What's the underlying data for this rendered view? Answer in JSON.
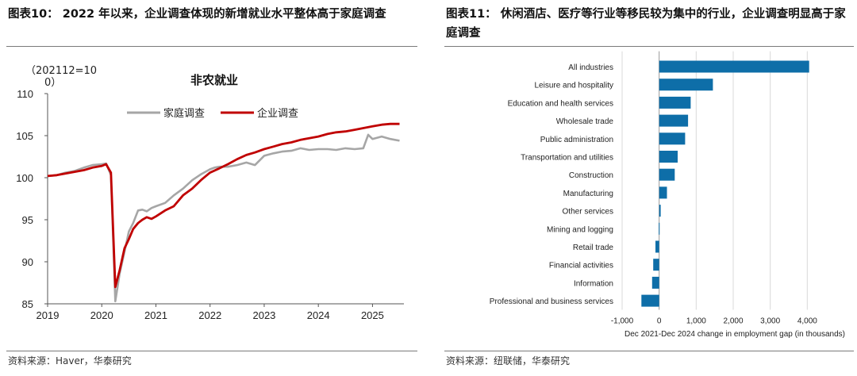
{
  "left": {
    "figure_title": "图表10： 2022 年以来，企业调查体现的新增就业水平整体高于家庭调查",
    "source": "资料来源：Haver，华泰研究",
    "chart_data": {
      "type": "line",
      "title": "非农就业",
      "unit_label_line1": "（202112=10",
      "unit_label_line2": "0）",
      "ylim": [
        85,
        110
      ],
      "yticks": [
        85,
        90,
        95,
        100,
        105,
        110
      ],
      "xlim": [
        2019.0,
        2025.58
      ],
      "xticks": [
        "2019",
        "2020",
        "2021",
        "2022",
        "2023",
        "2024",
        "2025"
      ],
      "series": [
        {
          "name": "家庭调查",
          "color": "#a6a6a6",
          "points": [
            [
              2019.0,
              100.2
            ],
            [
              2019.17,
              100.3
            ],
            [
              2019.33,
              100.6
            ],
            [
              2019.5,
              100.8
            ],
            [
              2019.67,
              101.2
            ],
            [
              2019.83,
              101.5
            ],
            [
              2020.0,
              101.6
            ],
            [
              2020.08,
              101.7
            ],
            [
              2020.17,
              100.3
            ],
            [
              2020.25,
              85.3
            ],
            [
              2020.33,
              88.6
            ],
            [
              2020.42,
              91.2
            ],
            [
              2020.5,
              93.6
            ],
            [
              2020.58,
              94.6
            ],
            [
              2020.67,
              96.1
            ],
            [
              2020.75,
              96.2
            ],
            [
              2020.83,
              96.0
            ],
            [
              2020.92,
              96.4
            ],
            [
              2021.0,
              96.6
            ],
            [
              2021.17,
              97.0
            ],
            [
              2021.33,
              97.9
            ],
            [
              2021.5,
              98.7
            ],
            [
              2021.67,
              99.7
            ],
            [
              2021.83,
              100.4
            ],
            [
              2022.0,
              101.0
            ],
            [
              2022.08,
              101.2
            ],
            [
              2022.17,
              101.3
            ],
            [
              2022.33,
              101.3
            ],
            [
              2022.5,
              101.5
            ],
            [
              2022.67,
              101.8
            ],
            [
              2022.83,
              101.5
            ],
            [
              2023.0,
              102.6
            ],
            [
              2023.17,
              102.9
            ],
            [
              2023.33,
              103.1
            ],
            [
              2023.5,
              103.2
            ],
            [
              2023.67,
              103.5
            ],
            [
              2023.83,
              103.3
            ],
            [
              2024.0,
              103.4
            ],
            [
              2024.17,
              103.4
            ],
            [
              2024.33,
              103.3
            ],
            [
              2024.5,
              103.5
            ],
            [
              2024.67,
              103.4
            ],
            [
              2024.83,
              103.5
            ],
            [
              2024.92,
              105.1
            ],
            [
              2025.0,
              104.6
            ],
            [
              2025.17,
              104.9
            ],
            [
              2025.33,
              104.6
            ],
            [
              2025.5,
              104.4
            ]
          ]
        },
        {
          "name": "企业调查",
          "color": "#c00000",
          "points": [
            [
              2019.0,
              100.2
            ],
            [
              2019.17,
              100.3
            ],
            [
              2019.33,
              100.5
            ],
            [
              2019.5,
              100.7
            ],
            [
              2019.67,
              100.9
            ],
            [
              2019.83,
              101.2
            ],
            [
              2020.0,
              101.4
            ],
            [
              2020.08,
              101.6
            ],
            [
              2020.17,
              100.6
            ],
            [
              2020.25,
              87.0
            ],
            [
              2020.33,
              89.0
            ],
            [
              2020.42,
              91.6
            ],
            [
              2020.5,
              92.7
            ],
            [
              2020.58,
              93.9
            ],
            [
              2020.67,
              94.6
            ],
            [
              2020.75,
              95.0
            ],
            [
              2020.83,
              95.3
            ],
            [
              2020.92,
              95.1
            ],
            [
              2021.0,
              95.4
            ],
            [
              2021.17,
              96.1
            ],
            [
              2021.33,
              96.6
            ],
            [
              2021.5,
              97.9
            ],
            [
              2021.67,
              98.7
            ],
            [
              2021.83,
              99.7
            ],
            [
              2022.0,
              100.6
            ],
            [
              2022.17,
              101.1
            ],
            [
              2022.33,
              101.6
            ],
            [
              2022.5,
              102.2
            ],
            [
              2022.67,
              102.7
            ],
            [
              2022.83,
              103.0
            ],
            [
              2023.0,
              103.4
            ],
            [
              2023.17,
              103.7
            ],
            [
              2023.33,
              104.0
            ],
            [
              2023.5,
              104.2
            ],
            [
              2023.67,
              104.5
            ],
            [
              2023.83,
              104.7
            ],
            [
              2024.0,
              104.9
            ],
            [
              2024.17,
              105.2
            ],
            [
              2024.33,
              105.4
            ],
            [
              2024.5,
              105.5
            ],
            [
              2024.67,
              105.7
            ],
            [
              2024.83,
              105.9
            ],
            [
              2025.0,
              106.1
            ],
            [
              2025.17,
              106.3
            ],
            [
              2025.33,
              106.4
            ],
            [
              2025.5,
              106.4
            ]
          ]
        }
      ]
    }
  },
  "right": {
    "figure_title": "图表11： 休闲酒店、医疗等行业等移民较为集中的行业，企业调查明显高于家庭调查",
    "source": "资料来源：纽联储，华泰研究",
    "chart_data": {
      "type": "bar",
      "orientation": "horizontal",
      "xlabel": "Dec 2021-Dec 2024 change in employment gap (in thousands)",
      "xlim": [
        -1000,
        4100
      ],
      "xticks": [
        -1000,
        0,
        1000,
        2000,
        3000,
        4000
      ],
      "xtick_labels": [
        "-1,000",
        "0",
        "1,000",
        "2,000",
        "3,000",
        "4,000"
      ],
      "color": "#0e6ea8",
      "categories": [
        "All industries",
        "Leisure and hospitality",
        "Education and health services",
        "Wholesale trade",
        "Public administration",
        "Transportation and utilities",
        "Construction",
        "Manufacturing",
        "Other services",
        "Mining and logging",
        "Retail trade",
        "Financial activities",
        "Information",
        "Professional and business services"
      ],
      "values": [
        4050,
        1450,
        850,
        780,
        700,
        500,
        420,
        210,
        40,
        -10,
        -100,
        -160,
        -190,
        -480
      ]
    }
  }
}
